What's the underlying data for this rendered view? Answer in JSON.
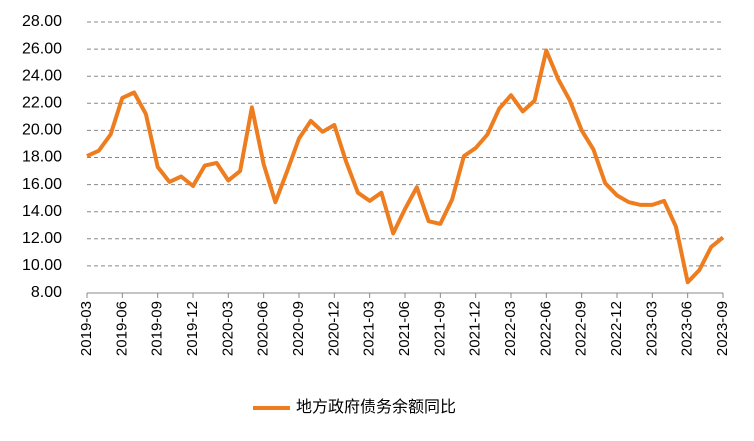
{
  "chart_data": {
    "type": "line",
    "categories": [
      "2019-03",
      null,
      null,
      "2019-06",
      null,
      null,
      "2019-09",
      null,
      null,
      "2019-12",
      null,
      null,
      "2020-03",
      null,
      null,
      "2020-06",
      null,
      null,
      "2020-09",
      null,
      null,
      "2020-12",
      null,
      null,
      "2021-03",
      null,
      null,
      "2021-06",
      null,
      null,
      "2021-09",
      null,
      null,
      "2021-12",
      null,
      null,
      "2022-03",
      null,
      null,
      "2022-06",
      null,
      null,
      "2022-09",
      null,
      null,
      "2022-12",
      null,
      null,
      "2023-03",
      null,
      null,
      "2023-06",
      null,
      null,
      "2023-09"
    ],
    "series": [
      {
        "name": "地方政府债务余额同比",
        "color": "#ed7d1f",
        "values": [
          18.1,
          18.5,
          19.7,
          22.4,
          22.8,
          21.2,
          17.3,
          16.2,
          16.6,
          15.9,
          17.4,
          17.6,
          16.3,
          17.0,
          21.7,
          17.5,
          14.7,
          17.0,
          19.4,
          20.7,
          19.9,
          20.4,
          17.7,
          15.4,
          14.8,
          15.4,
          12.4,
          14.2,
          15.8,
          13.3,
          13.1,
          14.9,
          18.1,
          18.7,
          19.7,
          21.6,
          22.6,
          21.4,
          22.2,
          25.9,
          23.8,
          22.2,
          20.0,
          18.6,
          16.1,
          15.2,
          14.7,
          14.5,
          14.5,
          14.8,
          12.9,
          8.8,
          9.7,
          11.4,
          12.1
        ]
      }
    ],
    "ylim": [
      8,
      28
    ],
    "yticks": [
      {
        "value": 8,
        "label": "8.00"
      },
      {
        "value": 10,
        "label": "10.00"
      },
      {
        "value": 12,
        "label": "12.00"
      },
      {
        "value": 14,
        "label": "14.00"
      },
      {
        "value": 16,
        "label": "16.00"
      },
      {
        "value": 18,
        "label": "18.00"
      },
      {
        "value": 20,
        "label": "20.00"
      },
      {
        "value": 22,
        "label": "22.00"
      },
      {
        "value": 24,
        "label": "24.00"
      },
      {
        "value": 26,
        "label": "26.00"
      },
      {
        "value": 28,
        "label": "28.00"
      }
    ],
    "grid": true,
    "legend": "bottom"
  }
}
